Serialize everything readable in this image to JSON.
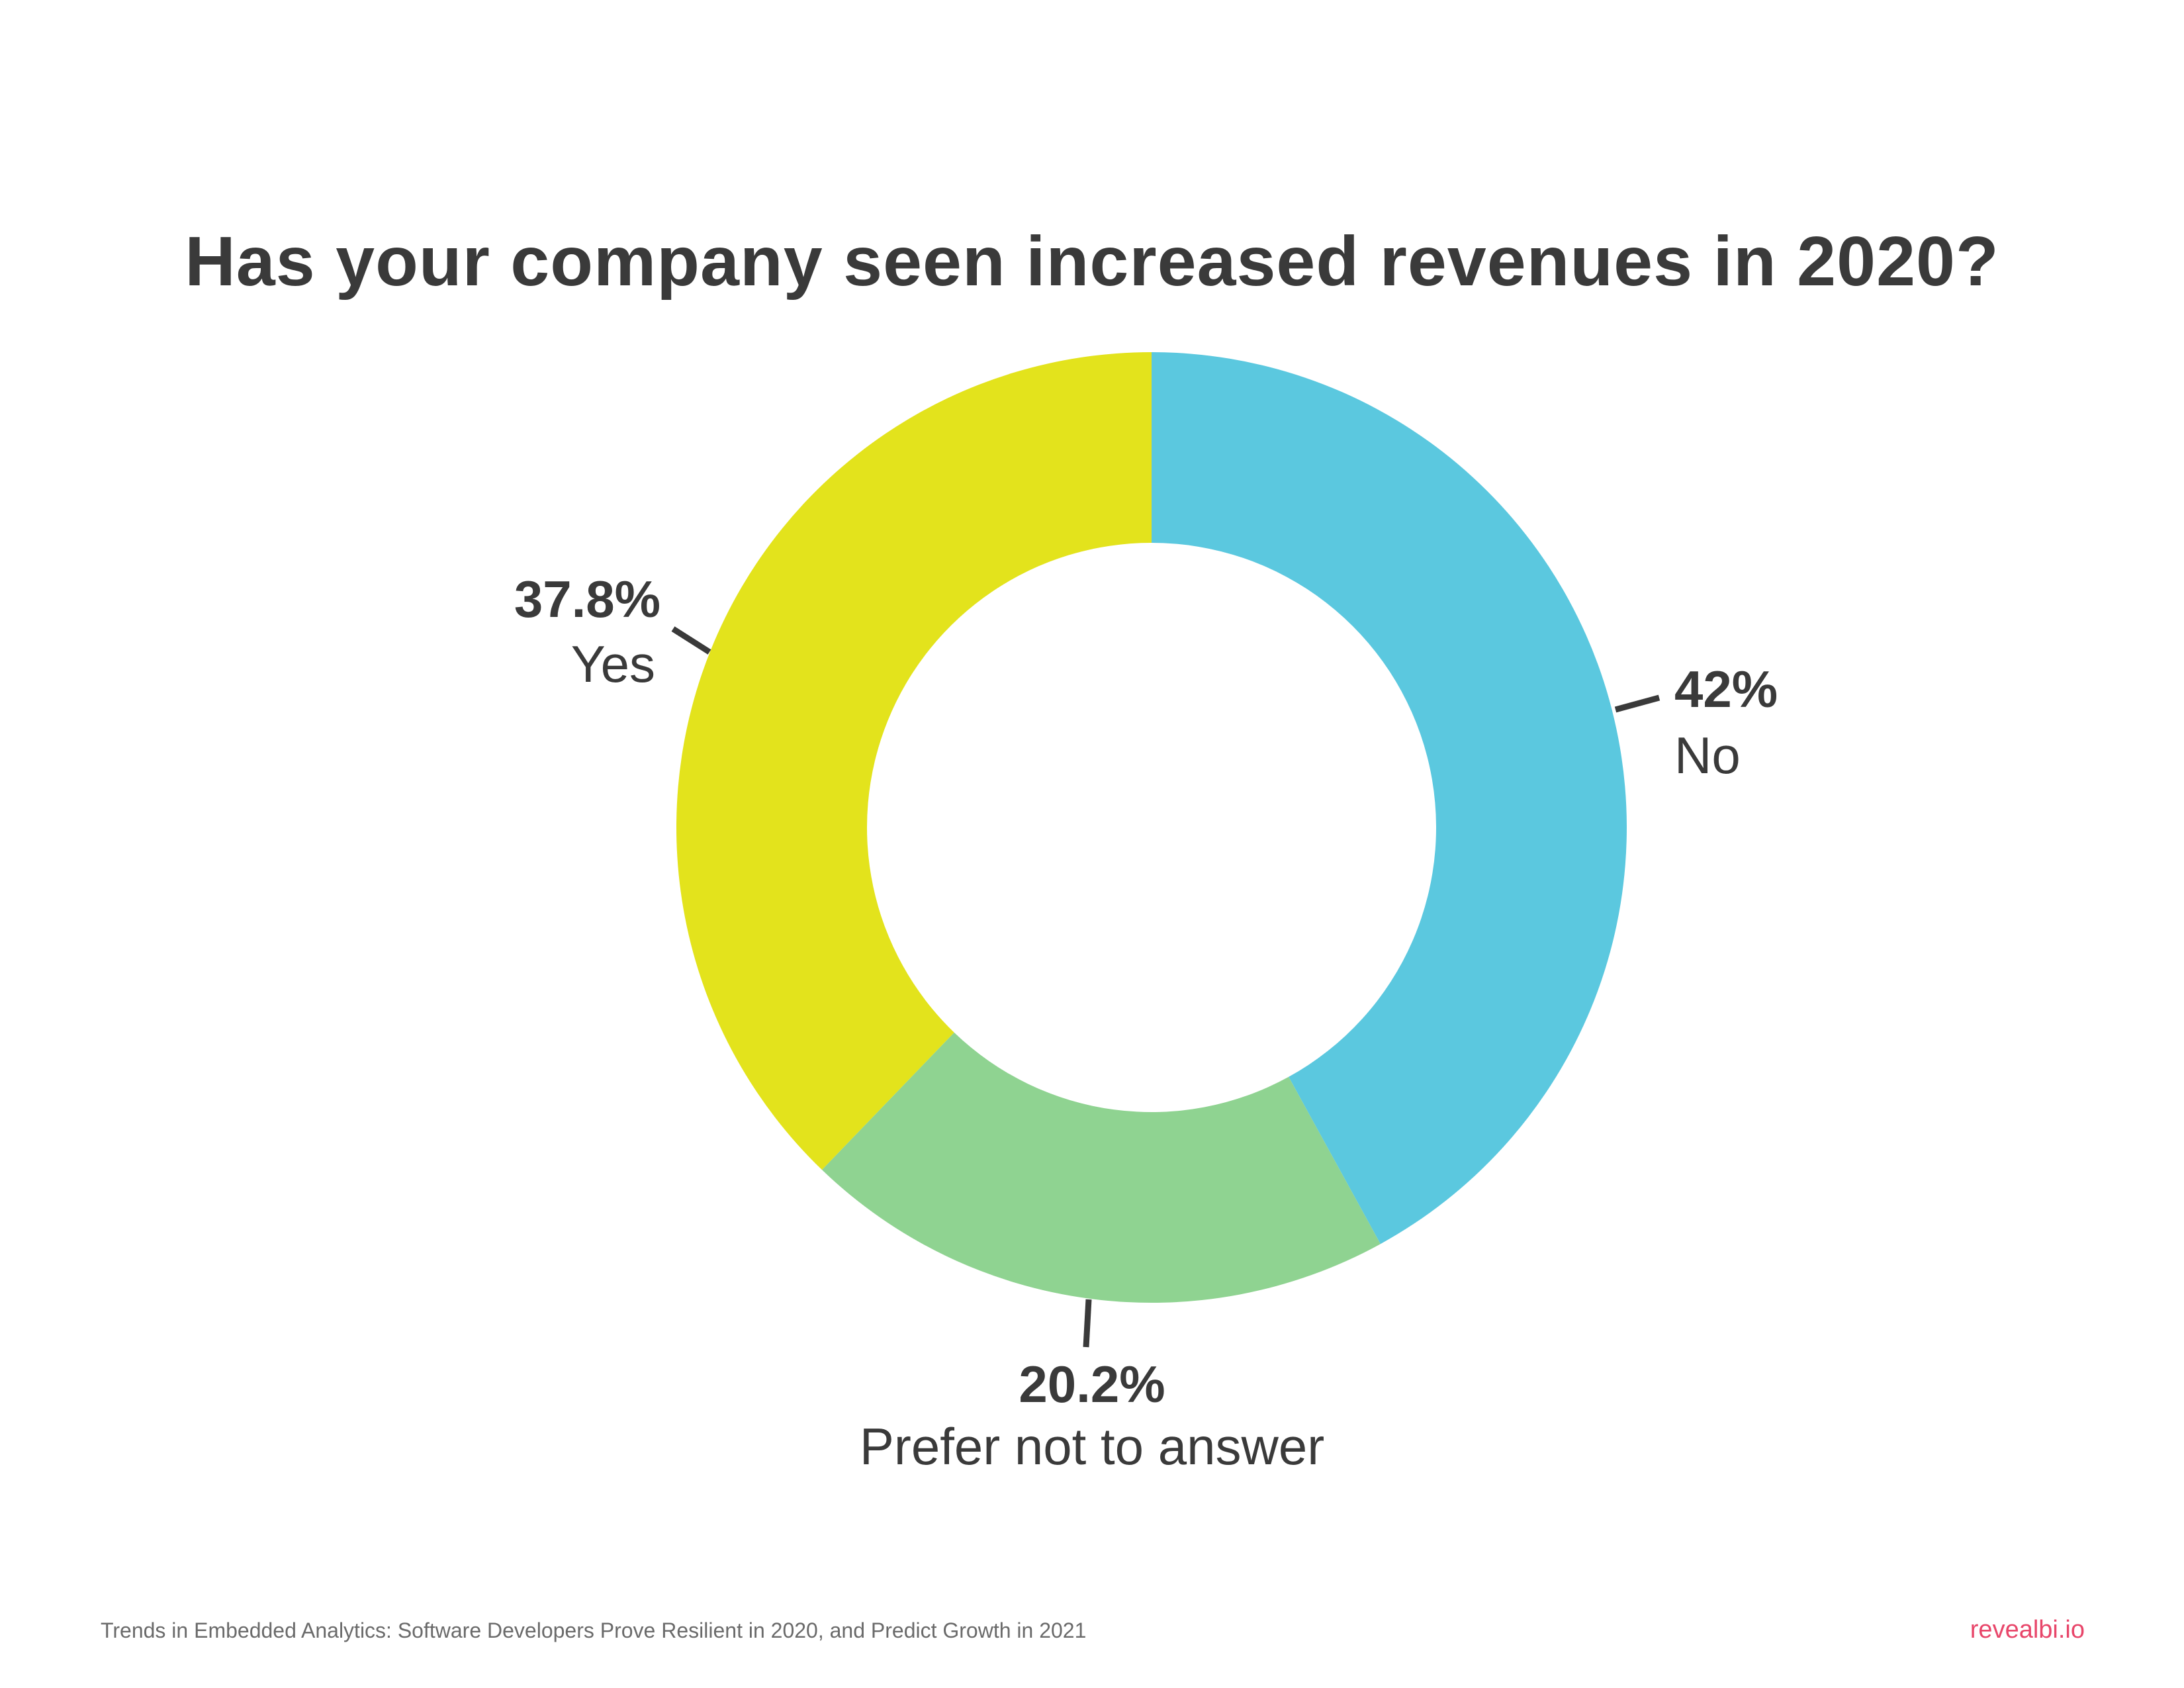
{
  "chart_data": {
    "type": "pie",
    "variant": "donut",
    "title": "Has your company seen increased revenues in 2020?",
    "slices": [
      {
        "name": "No",
        "value": 42,
        "value_label": "42%",
        "color": "#5bc8df"
      },
      {
        "name": "Prefer not to answer",
        "value": 20.2,
        "value_label": "20.2%",
        "color": "#8fd391"
      },
      {
        "name": "Yes",
        "value": 37.8,
        "value_label": "37.8%",
        "color": "#e3e31c"
      }
    ]
  },
  "footer": {
    "source": "Trends in Embedded Analytics: Software Developers Prove Resilient in 2020, and Predict Growth in 2021",
    "brand": "revealbi.io"
  }
}
